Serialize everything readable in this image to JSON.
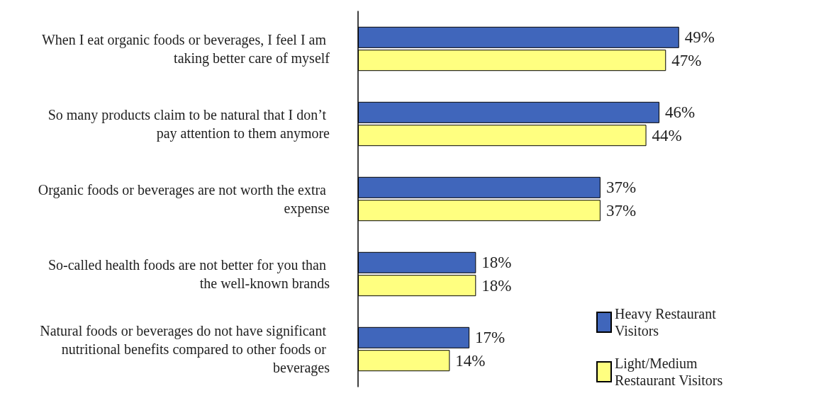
{
  "chart_data": {
    "type": "bar",
    "orientation": "horizontal",
    "categories": [
      "When I eat organic foods or beverages, I feel I am taking better care of myself",
      "So many products claim to be natural that I don’t pay attention to them anymore",
      "Organic foods or beverages are not worth the extra expense",
      "So-called health foods are not better for you than the well-known brands",
      "Natural foods or beverages do not have significant nutritional benefits compared to other foods or beverages"
    ],
    "series": [
      {
        "name": "Heavy Restaurant Visitors",
        "color": "#4066bb",
        "values": [
          49,
          46,
          37,
          18,
          17
        ],
        "value_labels": [
          "49%",
          "46%",
          "37%",
          "18%",
          "17%"
        ]
      },
      {
        "name": "Light/Medium Restaurant Visitors",
        "color": "#ffff80",
        "values": [
          47,
          44,
          37,
          18,
          14
        ],
        "value_labels": [
          "47%",
          "44%",
          "37%",
          "18%",
          "14%"
        ]
      }
    ],
    "legend": "bottom right"
  }
}
